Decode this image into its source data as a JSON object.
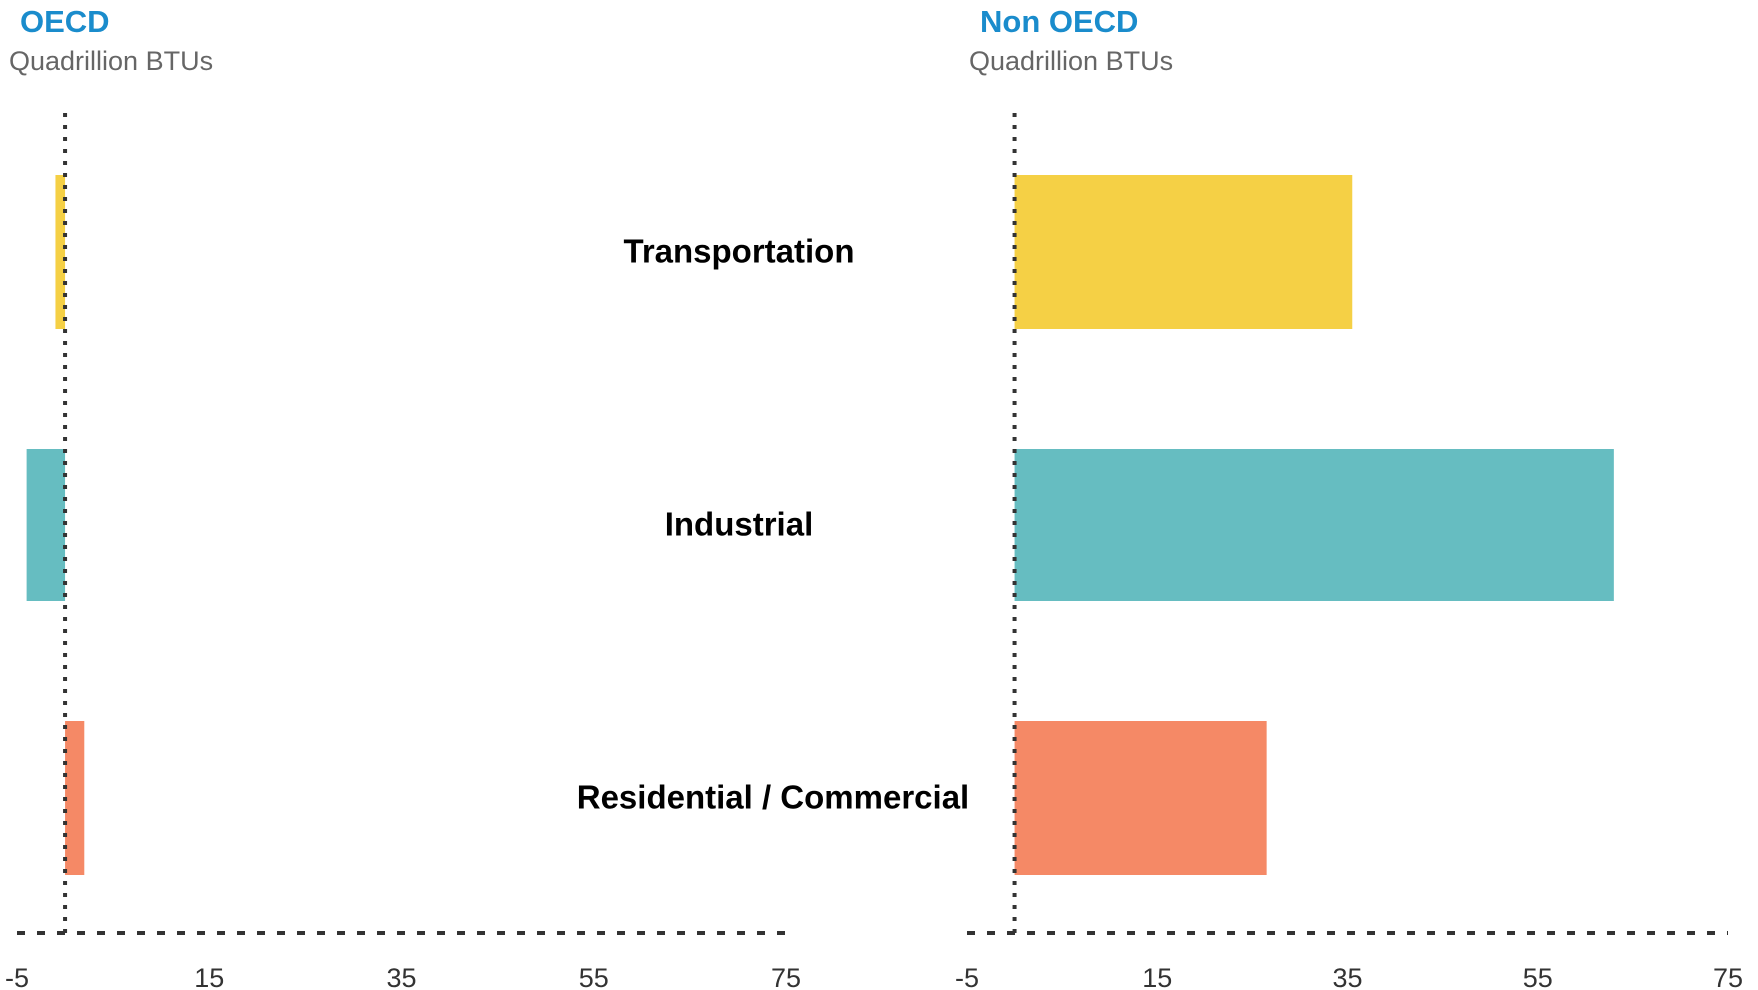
{
  "chart_data": [
    {
      "type": "bar",
      "orientation": "horizontal",
      "title": "OECD",
      "subtitle": "Quadrillion BTUs",
      "categories": [
        "Transportation",
        "Industrial",
        "Residential / Commercial"
      ],
      "values": [
        -1,
        -4,
        2
      ],
      "colors": [
        "#f5d045",
        "#66bdc1",
        "#f58966"
      ],
      "xlim": [
        -5,
        75
      ],
      "xticks": [
        -5,
        15,
        35,
        55,
        75
      ]
    },
    {
      "type": "bar",
      "orientation": "horizontal",
      "title": "Non OECD",
      "subtitle": "Quadrillion BTUs",
      "values": [
        35.5,
        63,
        26.5
      ],
      "colors": [
        "#f5d045",
        "#66bdc1",
        "#f58966"
      ],
      "xlim": [
        -5,
        75
      ],
      "xticks": [
        -5,
        15,
        35,
        55,
        75
      ]
    }
  ]
}
